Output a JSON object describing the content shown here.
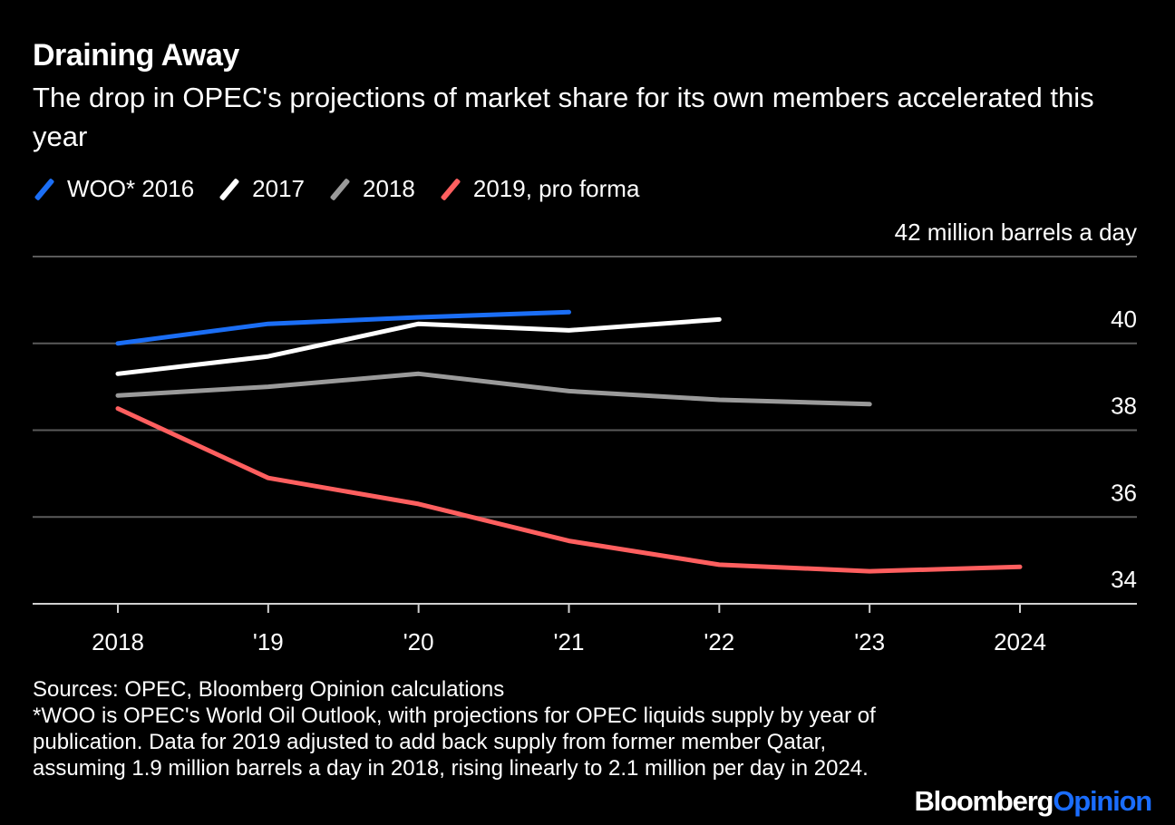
{
  "header": {
    "title": "Draining Away",
    "subtitle": "The drop in OPEC's projections of market share for its own members accelerated this year"
  },
  "legend": [
    {
      "label": "WOO* 2016",
      "color": "#1b6ef5"
    },
    {
      "label": "2017",
      "color": "#ffffff"
    },
    {
      "label": "2018",
      "color": "#9a9a9a"
    },
    {
      "label": "2019, pro forma",
      "color": "#ff5f5f"
    }
  ],
  "chart_data": {
    "type": "line",
    "title": "Draining Away",
    "subtitle": "The drop in OPEC's projections of market share for its own members accelerated this year",
    "xlabel": "",
    "ylabel": "42 million barrels a day",
    "x": [
      2018,
      2019,
      2020,
      2021,
      2022,
      2023,
      2024
    ],
    "x_tick_labels": [
      "2018",
      "'19",
      "'20",
      "'21",
      "'22",
      "'23",
      "2024"
    ],
    "y_ticks": [
      34,
      36,
      38,
      40,
      42
    ],
    "y_tick_labels": [
      "34",
      "36",
      "38",
      "40",
      "42 million barrels a day"
    ],
    "ylim": [
      34,
      42
    ],
    "grid": true,
    "series": [
      {
        "name": "WOO* 2016",
        "color": "#1b6ef5",
        "values": [
          40.0,
          40.45,
          40.6,
          40.72,
          null,
          null,
          null
        ]
      },
      {
        "name": "2017",
        "color": "#ffffff",
        "values": [
          39.3,
          39.7,
          40.45,
          40.3,
          40.55,
          null,
          null
        ]
      },
      {
        "name": "2018",
        "color": "#9a9a9a",
        "values": [
          38.8,
          39.0,
          39.3,
          38.9,
          38.7,
          38.6,
          null
        ]
      },
      {
        "name": "2019, pro forma",
        "color": "#ff5f5f",
        "values": [
          38.5,
          36.9,
          36.3,
          35.45,
          34.9,
          34.75,
          34.85
        ]
      }
    ]
  },
  "footer": {
    "sources": "Sources: OPEC, Bloomberg Opinion calculations",
    "note": "*WOO is OPEC's World Oil Outlook, with projections for OPEC liquids supply by year of publication. Data for 2019 adjusted to add back supply from former member Qatar, assuming 1.9 million barrels a day in 2018, rising linearly to 2.1 million per day in 2024.",
    "brand_main": "Bloomberg",
    "brand_accent": "Opinion"
  }
}
